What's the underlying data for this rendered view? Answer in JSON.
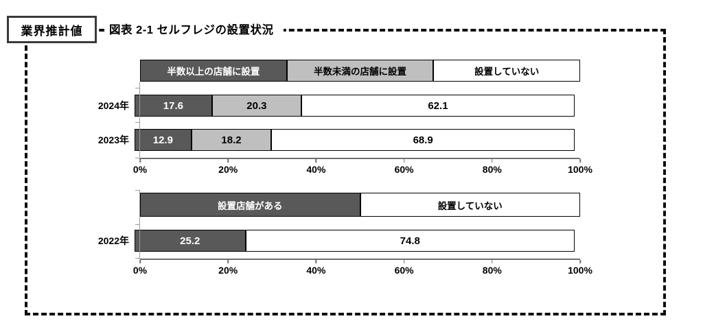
{
  "header": {
    "estimate_label": "業界推計値",
    "title": "図表 2-1 セルフレジの設置状況"
  },
  "colors": {
    "dark_gray": "#595959",
    "light_gray": "#BFBFBF",
    "white": "#FFFFFF",
    "segment_border": "#000000",
    "axis": "#6E6E6E",
    "frame_dash": "#0D0D0D"
  },
  "chart_data": [
    {
      "type": "bar",
      "subtype": "horizontal-stacked-100pct",
      "legend": [
        {
          "label": "半数以上の店舗に設置",
          "color": "#595959",
          "text_color": "#FFFFFF"
        },
        {
          "label": "半数未満の店舗に設置",
          "color": "#BFBFBF",
          "text_color": "#000000"
        },
        {
          "label": "設置していない",
          "color": "#FFFFFF",
          "text_color": "#000000"
        }
      ],
      "categories": [
        "2024年",
        "2023年"
      ],
      "series": [
        {
          "name": "半数以上の店舗に設置",
          "values": [
            17.6,
            12.9
          ]
        },
        {
          "name": "半数未満の店舗に設置",
          "values": [
            20.3,
            18.2
          ]
        },
        {
          "name": "設置していない",
          "values": [
            62.1,
            68.9
          ]
        }
      ],
      "x_ticks": [
        "0%",
        "20%",
        "40%",
        "60%",
        "80%",
        "100%"
      ],
      "xlim": [
        0,
        100
      ],
      "legend_position": "top",
      "grid": false
    },
    {
      "type": "bar",
      "subtype": "horizontal-stacked-100pct",
      "legend": [
        {
          "label": "設置店舗がある",
          "color": "#595959",
          "text_color": "#FFFFFF"
        },
        {
          "label": "設置していない",
          "color": "#FFFFFF",
          "text_color": "#000000"
        }
      ],
      "categories": [
        "2022年"
      ],
      "series": [
        {
          "name": "設置店舗がある",
          "values": [
            25.2
          ]
        },
        {
          "name": "設置していない",
          "values": [
            74.8
          ]
        }
      ],
      "x_ticks": [
        "0%",
        "20%",
        "40%",
        "60%",
        "80%",
        "100%"
      ],
      "xlim": [
        0,
        100
      ],
      "legend_position": "top",
      "grid": false
    }
  ]
}
